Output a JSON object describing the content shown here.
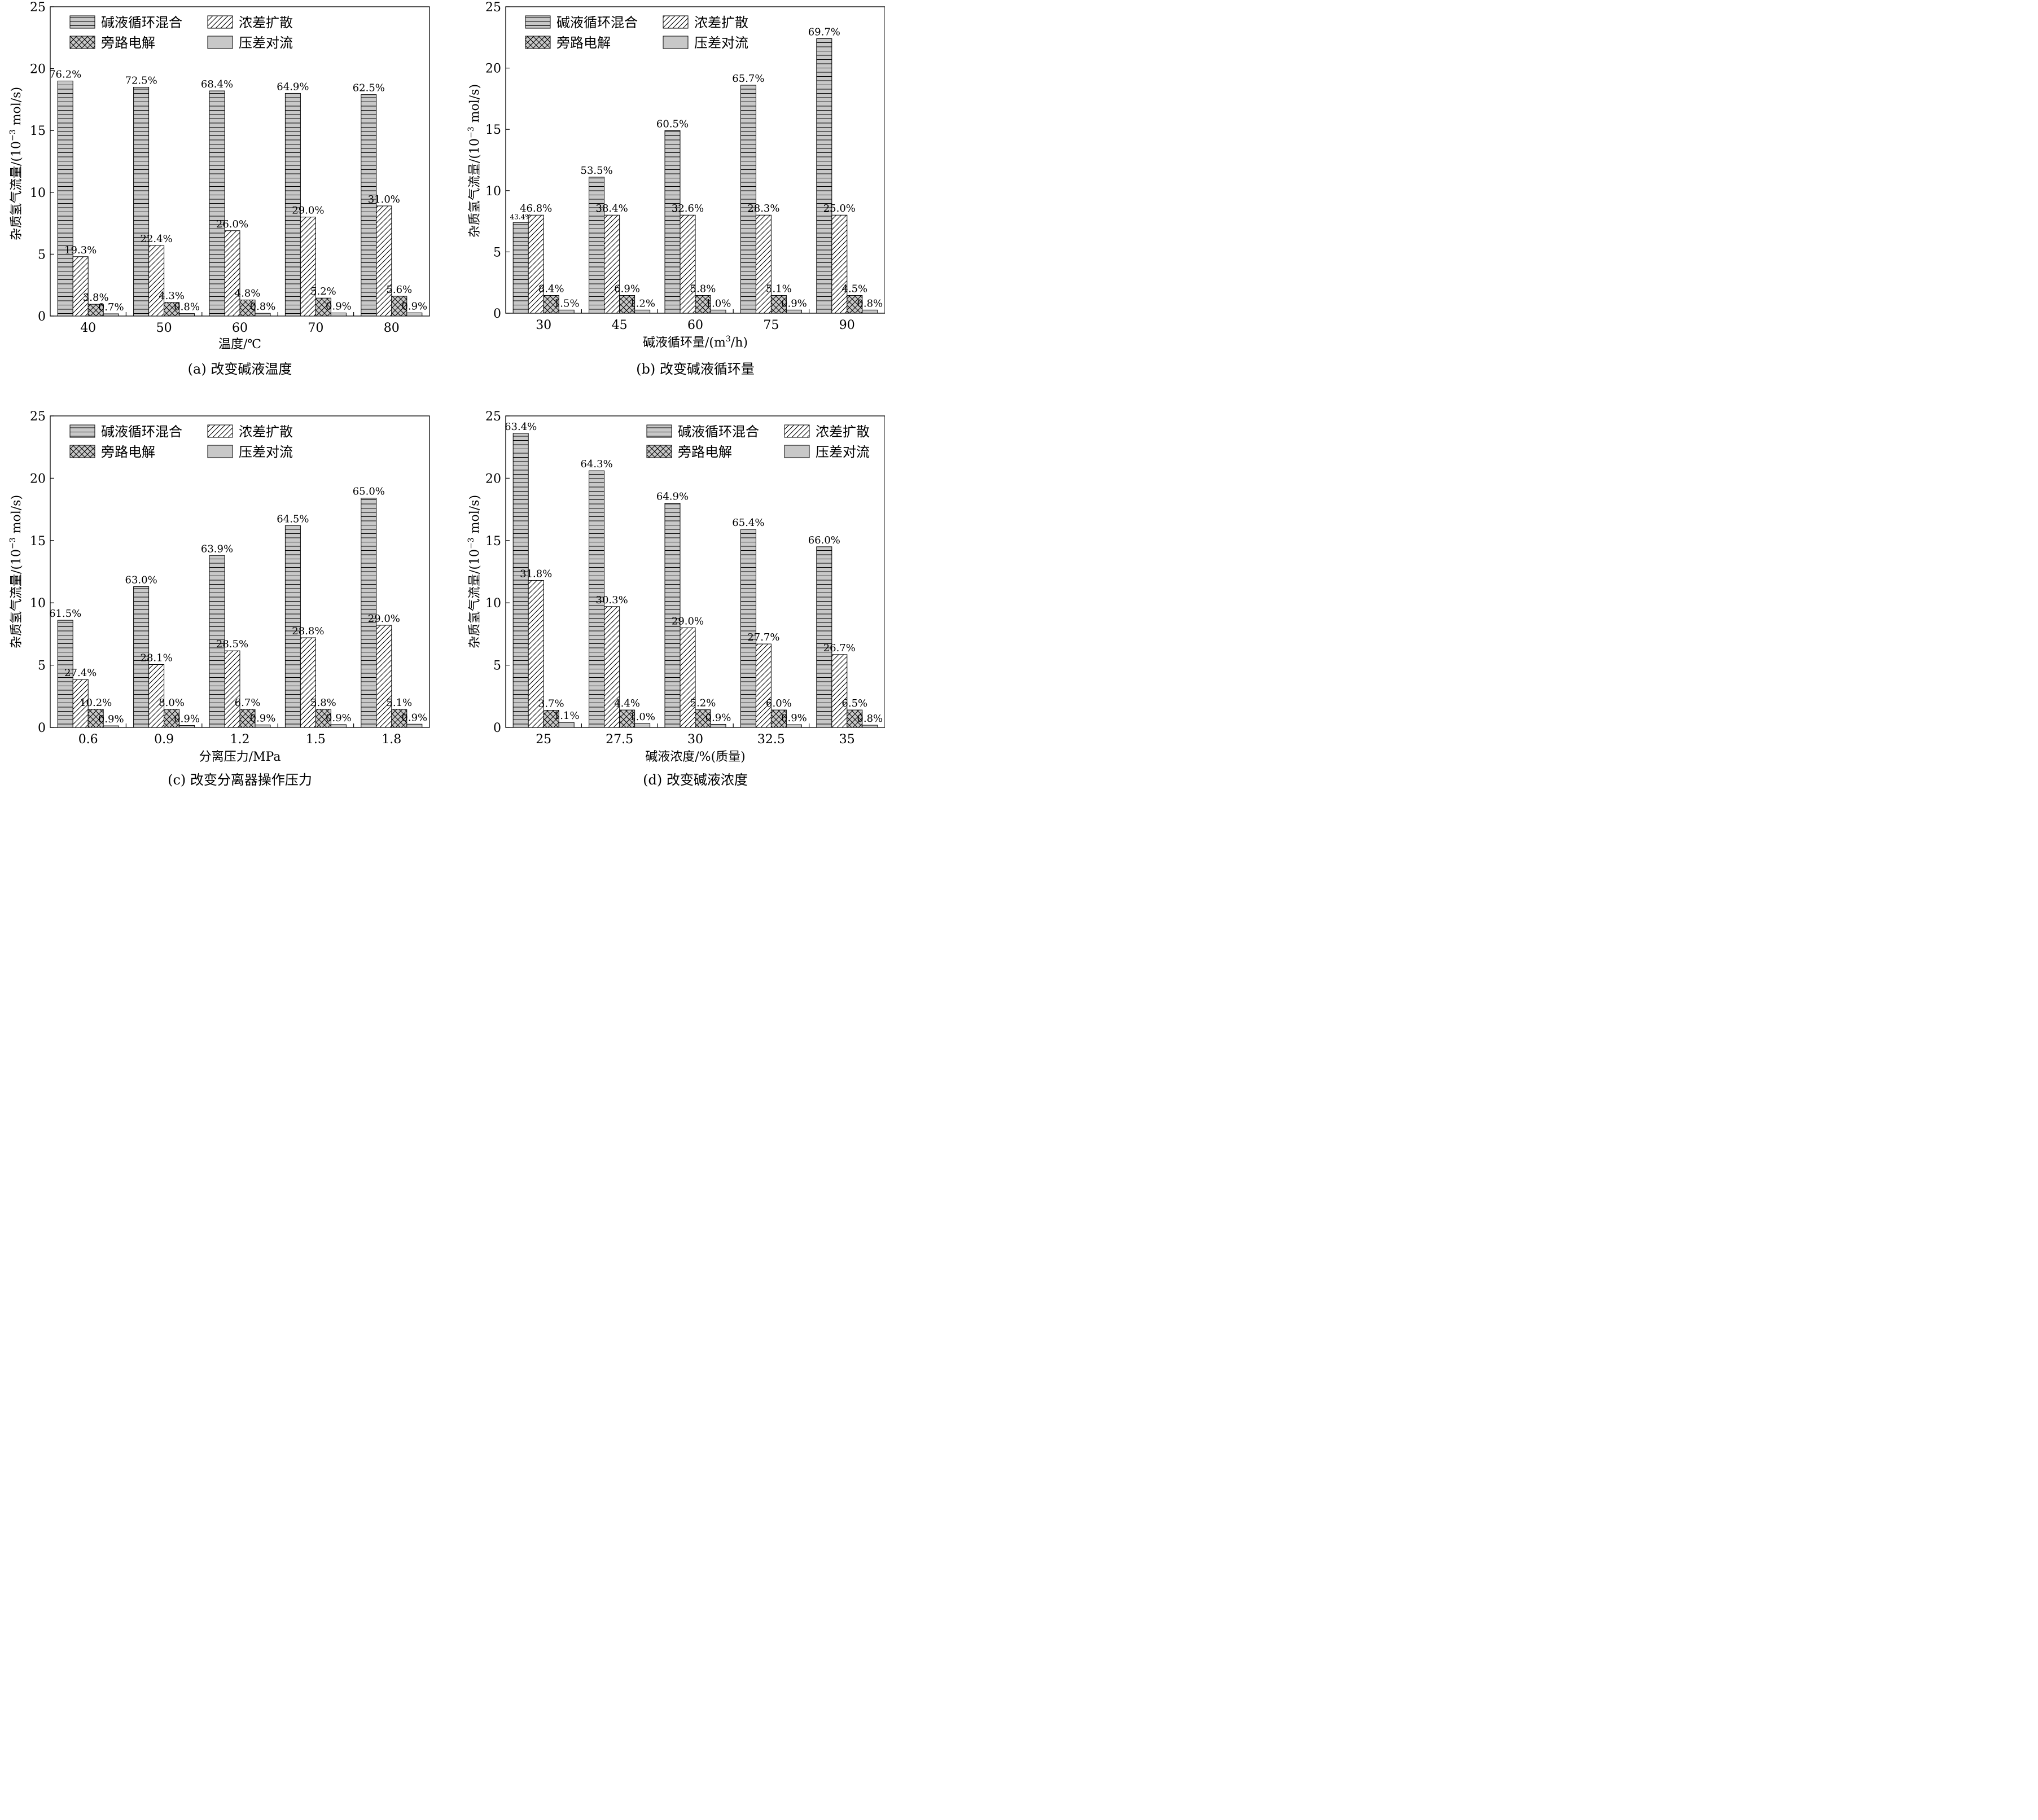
{
  "legend_labels": [
    "碱液循环混合",
    "浓差扩散",
    "旁路电解",
    "压差对流"
  ],
  "chart_data": [
    {
      "type": "bar",
      "caption": "(a) 改变碱液温度",
      "xlabel": "温度/℃",
      "ylabel_main": "杂质氢气流量/(10",
      "ylabel_sup": "−3",
      "ylabel_tail": " mol/s)",
      "ylim": [
        0,
        25
      ],
      "yticks": [
        0,
        5,
        10,
        15,
        20,
        25
      ],
      "legend_position": "top-left",
      "categories": [
        "40",
        "50",
        "60",
        "70",
        "80"
      ],
      "series": [
        {
          "name": "碱液循环混合",
          "pattern": "hlines",
          "values": [
            19.0,
            18.5,
            18.2,
            18.0,
            17.9
          ],
          "labels": [
            "76.2%",
            "72.5%",
            "68.4%",
            "64.9%",
            "62.5%"
          ]
        },
        {
          "name": "浓差扩散",
          "pattern": "diag",
          "values": [
            4.8,
            5.7,
            6.9,
            8.0,
            8.9
          ],
          "labels": [
            "19.3%",
            "22.4%",
            "26.0%",
            "29.0%",
            "31.0%"
          ]
        },
        {
          "name": "旁路电解",
          "pattern": "cross",
          "values": [
            0.95,
            1.1,
            1.3,
            1.45,
            1.6
          ],
          "labels": [
            "3.8%",
            "4.3%",
            "4.8%",
            "5.2%",
            "5.6%"
          ]
        },
        {
          "name": "压差对流",
          "pattern": "solid",
          "values": [
            0.18,
            0.2,
            0.22,
            0.25,
            0.26
          ],
          "labels": [
            "0.7%",
            "0.8%",
            "0.8%",
            "0.9%",
            "0.9%"
          ]
        }
      ]
    },
    {
      "type": "bar",
      "caption": "(b) 改变碱液循环量",
      "xlabel_main": "碱液循环量/(m",
      "xlabel_sup": "3",
      "xlabel_tail": "/h)",
      "ylabel_main": "杂质氢气流量/(10",
      "ylabel_sup": "−3",
      "ylabel_tail": " mol/s)",
      "ylim": [
        0,
        25
      ],
      "yticks": [
        0,
        5,
        10,
        15,
        20,
        25
      ],
      "legend_position": "top-left",
      "categories": [
        "30",
        "45",
        "60",
        "75",
        "90"
      ],
      "series": [
        {
          "name": "碱液循环混合",
          "pattern": "hlines",
          "values": [
            7.4,
            11.1,
            14.9,
            18.6,
            22.4
          ],
          "labels": [
            "43.4%",
            "53.5%",
            "60.5%",
            "65.7%",
            "69.7%"
          ]
        },
        {
          "name": "浓差扩散",
          "pattern": "diag",
          "values": [
            8.0,
            8.0,
            8.0,
            8.0,
            8.0
          ],
          "labels": [
            "46.8%",
            "38.4%",
            "32.6%",
            "28.3%",
            "25.0%"
          ]
        },
        {
          "name": "旁路电解",
          "pattern": "cross",
          "values": [
            1.45,
            1.45,
            1.45,
            1.45,
            1.45
          ],
          "labels": [
            "8.4%",
            "6.9%",
            "5.8%",
            "5.1%",
            "4.5%"
          ]
        },
        {
          "name": "压差对流",
          "pattern": "solid",
          "values": [
            0.26,
            0.26,
            0.26,
            0.26,
            0.26
          ],
          "labels": [
            "1.5%",
            "1.2%",
            "1.0%",
            "0.9%",
            "0.8%"
          ]
        }
      ]
    },
    {
      "type": "bar",
      "caption": "(c) 改变分离器操作压力",
      "xlabel": "分离压力/MPa",
      "ylabel_main": "杂质氢气流量/(10",
      "ylabel_sup": "−3",
      "ylabel_tail": " mol/s)",
      "ylim": [
        0,
        25
      ],
      "yticks": [
        0,
        5,
        10,
        15,
        20,
        25
      ],
      "legend_position": "top-left",
      "categories": [
        "0.6",
        "0.9",
        "1.2",
        "1.5",
        "1.8"
      ],
      "series": [
        {
          "name": "碱液循环混合",
          "pattern": "hlines",
          "values": [
            8.6,
            11.3,
            13.8,
            16.2,
            18.4
          ],
          "labels": [
            "61.5%",
            "63.0%",
            "63.9%",
            "64.5%",
            "65.0%"
          ]
        },
        {
          "name": "浓差扩散",
          "pattern": "diag",
          "values": [
            3.85,
            5.05,
            6.15,
            7.2,
            8.2
          ],
          "labels": [
            "27.4%",
            "28.1%",
            "28.5%",
            "28.8%",
            "29.0%"
          ]
        },
        {
          "name": "旁路电解",
          "pattern": "cross",
          "values": [
            1.45,
            1.45,
            1.45,
            1.45,
            1.45
          ],
          "labels": [
            "10.2%",
            "8.0%",
            "6.7%",
            "5.8%",
            "5.1%"
          ]
        },
        {
          "name": "压差对流",
          "pattern": "solid",
          "values": [
            0.13,
            0.16,
            0.2,
            0.23,
            0.26
          ],
          "labels": [
            "0.9%",
            "0.9%",
            "0.9%",
            "0.9%",
            "0.9%"
          ]
        }
      ]
    },
    {
      "type": "bar",
      "caption": "(d) 改变碱液浓度",
      "xlabel": "碱液浓度/%(质量)",
      "ylabel_main": "杂质氢气流量/(10",
      "ylabel_sup": "−3",
      "ylabel_tail": " mol/s)",
      "ylim": [
        0,
        25
      ],
      "yticks": [
        0,
        5,
        10,
        15,
        20,
        25
      ],
      "legend_position": "top-right",
      "categories": [
        "25",
        "27.5",
        "30",
        "32.5",
        "35"
      ],
      "series": [
        {
          "name": "碱液循环混合",
          "pattern": "hlines",
          "values": [
            23.6,
            20.6,
            18.0,
            15.9,
            14.5
          ],
          "labels": [
            "63.4%",
            "64.3%",
            "64.9%",
            "65.4%",
            "66.0%"
          ]
        },
        {
          "name": "浓差扩散",
          "pattern": "diag",
          "values": [
            11.8,
            9.7,
            8.0,
            6.7,
            5.85
          ],
          "labels": [
            "31.8%",
            "30.3%",
            "29.0%",
            "27.7%",
            "26.7%"
          ]
        },
        {
          "name": "旁路电解",
          "pattern": "cross",
          "values": [
            1.38,
            1.4,
            1.42,
            1.4,
            1.4
          ],
          "labels": [
            "3.7%",
            "4.4%",
            "5.2%",
            "6.0%",
            "6.5%"
          ]
        },
        {
          "name": "压差对流",
          "pattern": "solid",
          "values": [
            0.4,
            0.32,
            0.25,
            0.22,
            0.18
          ],
          "labels": [
            "1.1%",
            "1.0%",
            "0.9%",
            "0.9%",
            "0.8%"
          ]
        }
      ]
    }
  ]
}
